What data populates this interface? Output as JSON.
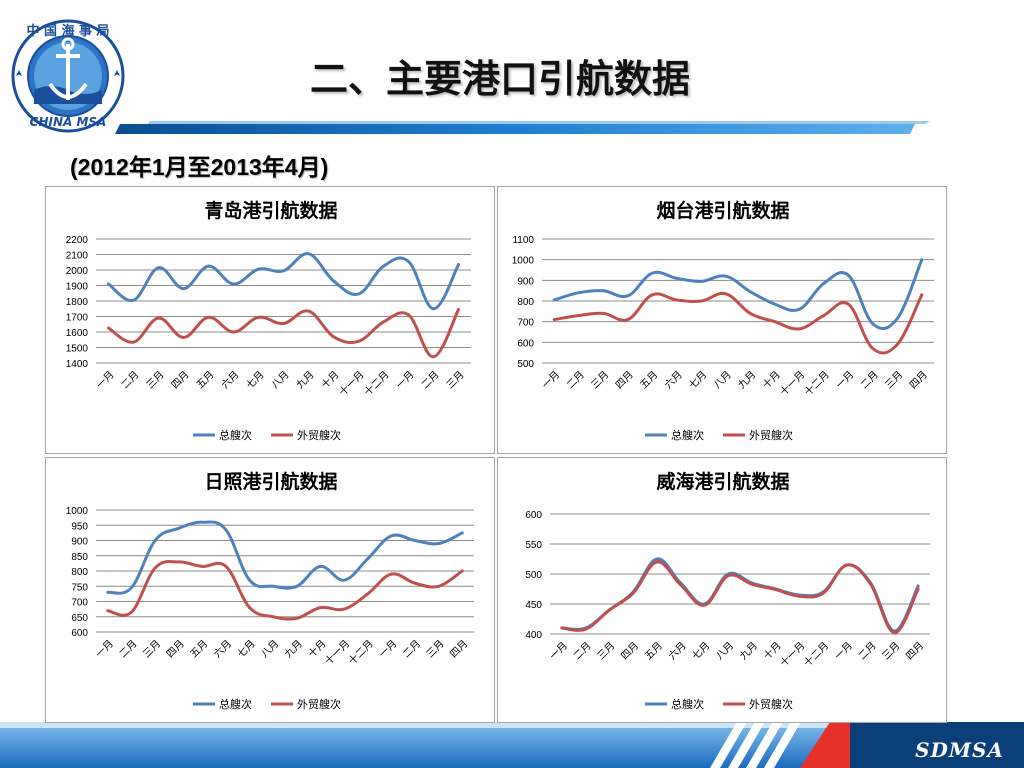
{
  "header": {
    "title": "二、主要港口引航数据",
    "subtitle": "(2012年1月至2013年4月)",
    "logo_top_text": "中 国 海 事 局",
    "logo_bottom_text": "CHINA MSA"
  },
  "footer": {
    "brand": "SDMSA"
  },
  "colors": {
    "series_total": "#4f81bd",
    "series_foreign": "#c0504d",
    "banner_blue": "#1f7fd0"
  },
  "chart_data": [
    {
      "type": "line",
      "title": "青岛港引航数据",
      "categories": [
        "一月",
        "二月",
        "三月",
        "四月",
        "五月",
        "六月",
        "七月",
        "八月",
        "九月",
        "十月",
        "十一月",
        "十二月",
        "一月",
        "二月",
        "三月"
      ],
      "ylim": [
        1400,
        2200
      ],
      "yticks": [
        1400,
        1500,
        1600,
        1700,
        1800,
        1900,
        2000,
        2100,
        2200
      ],
      "series": [
        {
          "name": "总艘次",
          "values": [
            1910,
            1805,
            2015,
            1880,
            2025,
            1910,
            2005,
            1995,
            2105,
            1930,
            1845,
            2025,
            2055,
            1750,
            2035
          ]
        },
        {
          "name": "外贸艘次",
          "values": [
            1625,
            1535,
            1690,
            1565,
            1695,
            1600,
            1695,
            1655,
            1735,
            1570,
            1540,
            1665,
            1710,
            1440,
            1745
          ]
        }
      ],
      "legend": "bottom"
    },
    {
      "type": "line",
      "title": "烟台港引航数据",
      "categories": [
        "一月",
        "二月",
        "三月",
        "四月",
        "五月",
        "六月",
        "七月",
        "八月",
        "九月",
        "十月",
        "十一月",
        "十二月",
        "一月",
        "二月",
        "三月",
        "四月"
      ],
      "ylim": [
        500,
        1100
      ],
      "yticks": [
        500,
        600,
        700,
        800,
        900,
        1000,
        1100
      ],
      "series": [
        {
          "name": "总艘次",
          "values": [
            805,
            840,
            850,
            825,
            935,
            910,
            895,
            920,
            845,
            785,
            760,
            885,
            925,
            690,
            715,
            1000
          ]
        },
        {
          "name": "外贸艘次",
          "values": [
            710,
            730,
            740,
            710,
            830,
            805,
            800,
            835,
            740,
            700,
            665,
            730,
            785,
            570,
            590,
            830
          ]
        }
      ],
      "legend": "bottom"
    },
    {
      "type": "line",
      "title": "日照港引航数据",
      "categories": [
        "一月",
        "二月",
        "三月",
        "四月",
        "五月",
        "六月",
        "七月",
        "八月",
        "九月",
        "十月",
        "十一月",
        "十二月",
        "一月",
        "二月",
        "三月",
        "四月"
      ],
      "ylim": [
        600,
        1000
      ],
      "yticks": [
        600,
        650,
        700,
        750,
        800,
        850,
        900,
        950,
        1000
      ],
      "series": [
        {
          "name": "总艘次",
          "values": [
            730,
            745,
            900,
            940,
            960,
            935,
            770,
            750,
            750,
            815,
            770,
            840,
            915,
            900,
            890,
            925
          ]
        },
        {
          "name": "外贸艘次",
          "values": [
            670,
            665,
            810,
            830,
            815,
            815,
            680,
            650,
            645,
            680,
            675,
            725,
            790,
            760,
            750,
            800
          ]
        }
      ],
      "legend": "bottom"
    },
    {
      "type": "line",
      "title": "威海港引航数据",
      "categories": [
        "一月",
        "二月",
        "三月",
        "四月",
        "五月",
        "六月",
        "七月",
        "八月",
        "九月",
        "十月",
        "十一月",
        "十二月",
        "一月",
        "二月",
        "三月",
        "四月"
      ],
      "ylim": [
        400,
        600
      ],
      "yticks": [
        400,
        450,
        500,
        550,
        600
      ],
      "series": [
        {
          "name": "总艘次",
          "values": [
            410,
            410,
            440,
            470,
            525,
            485,
            450,
            500,
            485,
            475,
            465,
            470,
            515,
            485,
            405,
            480
          ]
        },
        {
          "name": "外贸艘次",
          "values": [
            410,
            408,
            440,
            468,
            520,
            482,
            448,
            497,
            483,
            474,
            463,
            468,
            515,
            483,
            402,
            475
          ]
        }
      ],
      "legend": "bottom"
    }
  ]
}
